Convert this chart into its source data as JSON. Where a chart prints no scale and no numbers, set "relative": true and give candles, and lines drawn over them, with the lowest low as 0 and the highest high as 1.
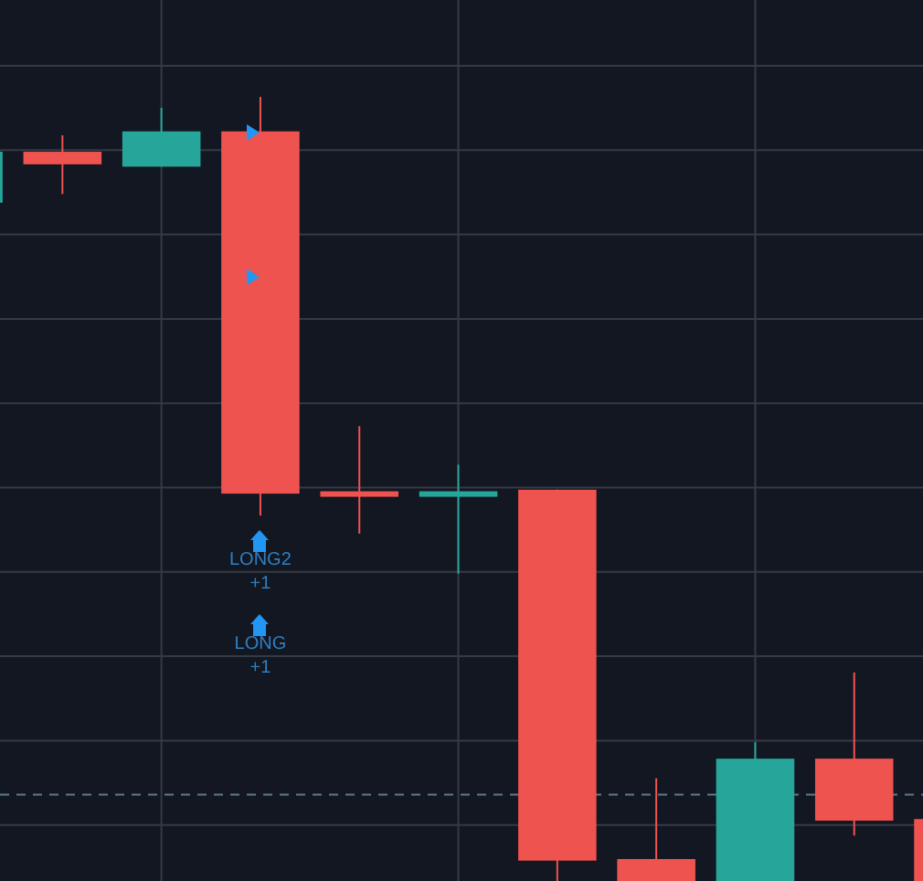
{
  "chart_data": {
    "type": "candlestick",
    "relative": true,
    "categories": [
      null,
      null,
      null,
      null,
      null,
      null,
      null,
      null,
      null,
      null,
      null
    ],
    "ohlc": [
      [
        0.865,
        0.93,
        0.865,
        0.93
      ],
      [
        0.93,
        0.951,
        0.876,
        0.914
      ],
      [
        0.911,
        0.986,
        0.911,
        0.956
      ],
      [
        0.956,
        1.0,
        0.466,
        0.494
      ],
      [
        0.497,
        0.58,
        0.443,
        0.49
      ],
      [
        0.49,
        0.531,
        0.392,
        0.497
      ],
      [
        0.499,
        0.499,
        0,
        0.026
      ],
      [
        0.028,
        0.131,
        0,
        0
      ],
      [
        0,
        0.177,
        0,
        0.156
      ],
      [
        0.156,
        0.266,
        0.058,
        0.077
      ],
      [
        0.079,
        0.079,
        0,
        0
      ]
    ],
    "colors": [
      "#26a69a",
      "#ef5350",
      "#26a69a",
      "#ef5350",
      "#ef5350",
      "#26a69a",
      "#ef5350",
      "#ef5350",
      "#26a69a",
      "#ef5350",
      "#ef5350"
    ],
    "grid": true,
    "ref_lines": [
      {
        "axis": "y",
        "value": 0.11,
        "color": "#5c7a8c",
        "line_style": "dashed"
      }
    ],
    "annotations": [
      "LONG2",
      "+1",
      "LONG",
      "+1"
    ]
  }
}
